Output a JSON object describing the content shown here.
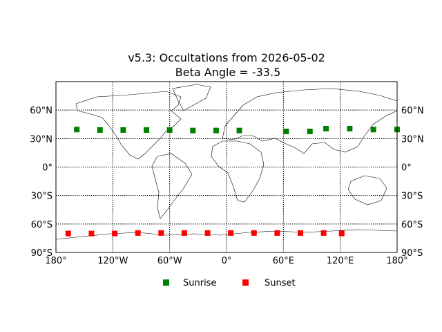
{
  "chart_data": {
    "type": "scatter",
    "title": "v5.3: Occultations from 2026-05-02",
    "subtitle": "Beta Angle = -33.5",
    "xlim": [
      -180,
      180
    ],
    "ylim": [
      -90,
      90
    ],
    "x_ticks": [
      -180,
      -120,
      -60,
      0,
      60,
      120,
      180
    ],
    "x_tick_labels": [
      "180°",
      "120°W",
      "60°W",
      "0°",
      "60°E",
      "120°E",
      "180°"
    ],
    "y_ticks": [
      -90,
      -60,
      -30,
      0,
      30,
      60
    ],
    "y_tick_labels": [
      "90°S",
      "60°S",
      "30°S",
      "0°",
      "30°N",
      "60°N"
    ],
    "grid": true,
    "legend_position": "bottom-center",
    "series": [
      {
        "name": "Sunrise",
        "color": "#008000",
        "marker": "square",
        "x": [
          -158,
          -133.5,
          -109,
          -84.5,
          -60,
          -35.5,
          -11,
          13.5,
          63,
          88,
          105,
          130,
          155,
          180
        ],
        "y": [
          39.5,
          39,
          39,
          39,
          39,
          38.5,
          38.5,
          38.5,
          37.5,
          37.5,
          40.5,
          40.5,
          39.5,
          39.5
        ]
      },
      {
        "name": "Sunset",
        "color": "#ff0000",
        "marker": "square",
        "x": [
          -167,
          -142.5,
          -118,
          -93.5,
          -69,
          -44.5,
          -20,
          4.5,
          29,
          53.5,
          78,
          102.5,
          121.5
        ],
        "y": [
          -70,
          -70,
          -70,
          -69.5,
          -69.5,
          -69.5,
          -69.5,
          -69.5,
          -69.5,
          -69.5,
          -69.5,
          -69.5,
          -70
        ]
      }
    ]
  },
  "map": {
    "background": "world-coastlines"
  }
}
